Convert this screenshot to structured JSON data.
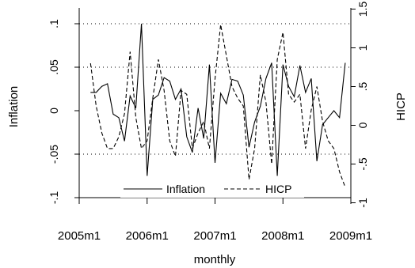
{
  "chart_data": {
    "type": "line",
    "title": "",
    "xlabel": "monthly",
    "ylabel_left": "Inflation",
    "ylabel_right": "HICP",
    "x_ticks": [
      "2005m1",
      "2006m1",
      "2007m1",
      "2008m1",
      "2009m1"
    ],
    "x_range": [
      "2005m1",
      "2009m1"
    ],
    "y_left_ticks": [
      "-.1",
      "-.05",
      "0",
      ".05",
      ".1"
    ],
    "y_left_range": [
      -0.1,
      0.1
    ],
    "y_right_ticks": [
      "-1",
      "-.5",
      "0",
      ".5",
      "1",
      "1.5"
    ],
    "y_right_range": [
      -0.816,
      1.533
    ],
    "grid": "dotted horizontal at -.05, .05, .1",
    "legend": {
      "position": "bottom-inside",
      "entries": [
        "Inflation",
        "HICP"
      ]
    },
    "x": [
      "2005m3",
      "2005m4",
      "2005m5",
      "2005m6",
      "2005m7",
      "2005m8",
      "2005m9",
      "2005m10",
      "2005m11",
      "2005m12",
      "2006m1",
      "2006m2",
      "2006m3",
      "2006m4",
      "2006m5",
      "2006m6",
      "2006m7",
      "2006m8",
      "2006m9",
      "2006m10",
      "2006m11",
      "2006m12",
      "2007m1",
      "2007m2",
      "2007m3",
      "2007m4",
      "2007m5",
      "2007m6",
      "2007m7",
      "2007m8",
      "2007m9",
      "2007m10",
      "2007m11",
      "2007m12",
      "2008m1",
      "2008m2",
      "2008m3",
      "2008m4",
      "2008m5",
      "2008m6",
      "2008m7",
      "2008m8",
      "2008m9",
      "2008m10",
      "2008m11",
      "2008m12"
    ],
    "series": [
      {
        "name": "Inflation",
        "style": "solid",
        "axis": "left",
        "values": [
          0.021,
          0.021,
          0.028,
          0.031,
          -0.004,
          -0.008,
          -0.035,
          0.017,
          0.003,
          0.1,
          -0.075,
          0.013,
          0.018,
          0.038,
          0.034,
          0.013,
          0.025,
          -0.03,
          -0.048,
          0.003,
          -0.032,
          0.053,
          -0.06,
          0.02,
          0.008,
          0.036,
          0.034,
          0.018,
          -0.042,
          -0.013,
          0.005,
          0.037,
          0.055,
          -0.075,
          0.053,
          0.028,
          0.016,
          0.052,
          0.021,
          0.037,
          -0.058,
          -0.016,
          -0.008,
          0.0,
          -0.008,
          0.055
        ]
      },
      {
        "name": "HICP",
        "style": "dashed",
        "axis": "right",
        "values": [
          0.8,
          0.25,
          -0.1,
          -0.3,
          -0.3,
          -0.15,
          0.15,
          0.95,
          0.1,
          -0.3,
          -0.2,
          0.35,
          0.85,
          0.45,
          -0.2,
          -0.4,
          0.45,
          0.4,
          -0.3,
          -0.1,
          0.05,
          -0.3,
          0.6,
          1.3,
          0.9,
          0.5,
          0.35,
          0.25,
          -0.7,
          -0.3,
          0.65,
          0.3,
          -0.5,
          0.85,
          1.2,
          0.4,
          0.3,
          0.4,
          -0.3,
          0.2,
          0.5,
          0.05,
          -0.2,
          -0.3,
          -0.6,
          -0.8
        ]
      }
    ]
  }
}
